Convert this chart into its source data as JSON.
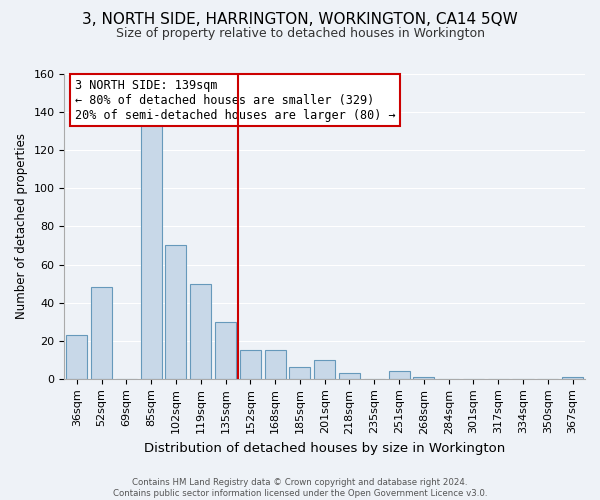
{
  "title": "3, NORTH SIDE, HARRINGTON, WORKINGTON, CA14 5QW",
  "subtitle": "Size of property relative to detached houses in Workington",
  "xlabel": "Distribution of detached houses by size in Workington",
  "ylabel": "Number of detached properties",
  "bar_labels": [
    "36sqm",
    "52sqm",
    "69sqm",
    "85sqm",
    "102sqm",
    "119sqm",
    "135sqm",
    "152sqm",
    "168sqm",
    "185sqm",
    "201sqm",
    "218sqm",
    "235sqm",
    "251sqm",
    "268sqm",
    "284sqm",
    "301sqm",
    "317sqm",
    "334sqm",
    "350sqm",
    "367sqm"
  ],
  "bar_values": [
    23,
    48,
    0,
    133,
    70,
    50,
    30,
    15,
    15,
    6,
    10,
    3,
    0,
    4,
    1,
    0,
    0,
    0,
    0,
    0,
    1
  ],
  "bar_color": "#c8d8e8",
  "bar_edge_color": "#6699bb",
  "vline_color": "#cc0000",
  "ylim": [
    0,
    160
  ],
  "yticks": [
    0,
    20,
    40,
    60,
    80,
    100,
    120,
    140,
    160
  ],
  "annotation_title": "3 NORTH SIDE: 139sqm",
  "annotation_line1": "← 80% of detached houses are smaller (329)",
  "annotation_line2": "20% of semi-detached houses are larger (80) →",
  "annotation_box_color": "#ffffff",
  "annotation_box_edge": "#cc0000",
  "footer_line1": "Contains HM Land Registry data © Crown copyright and database right 2024.",
  "footer_line2": "Contains public sector information licensed under the Open Government Licence v3.0.",
  "background_color": "#eef2f7",
  "grid_color": "#ffffff",
  "title_fontsize": 11,
  "subtitle_fontsize": 9
}
